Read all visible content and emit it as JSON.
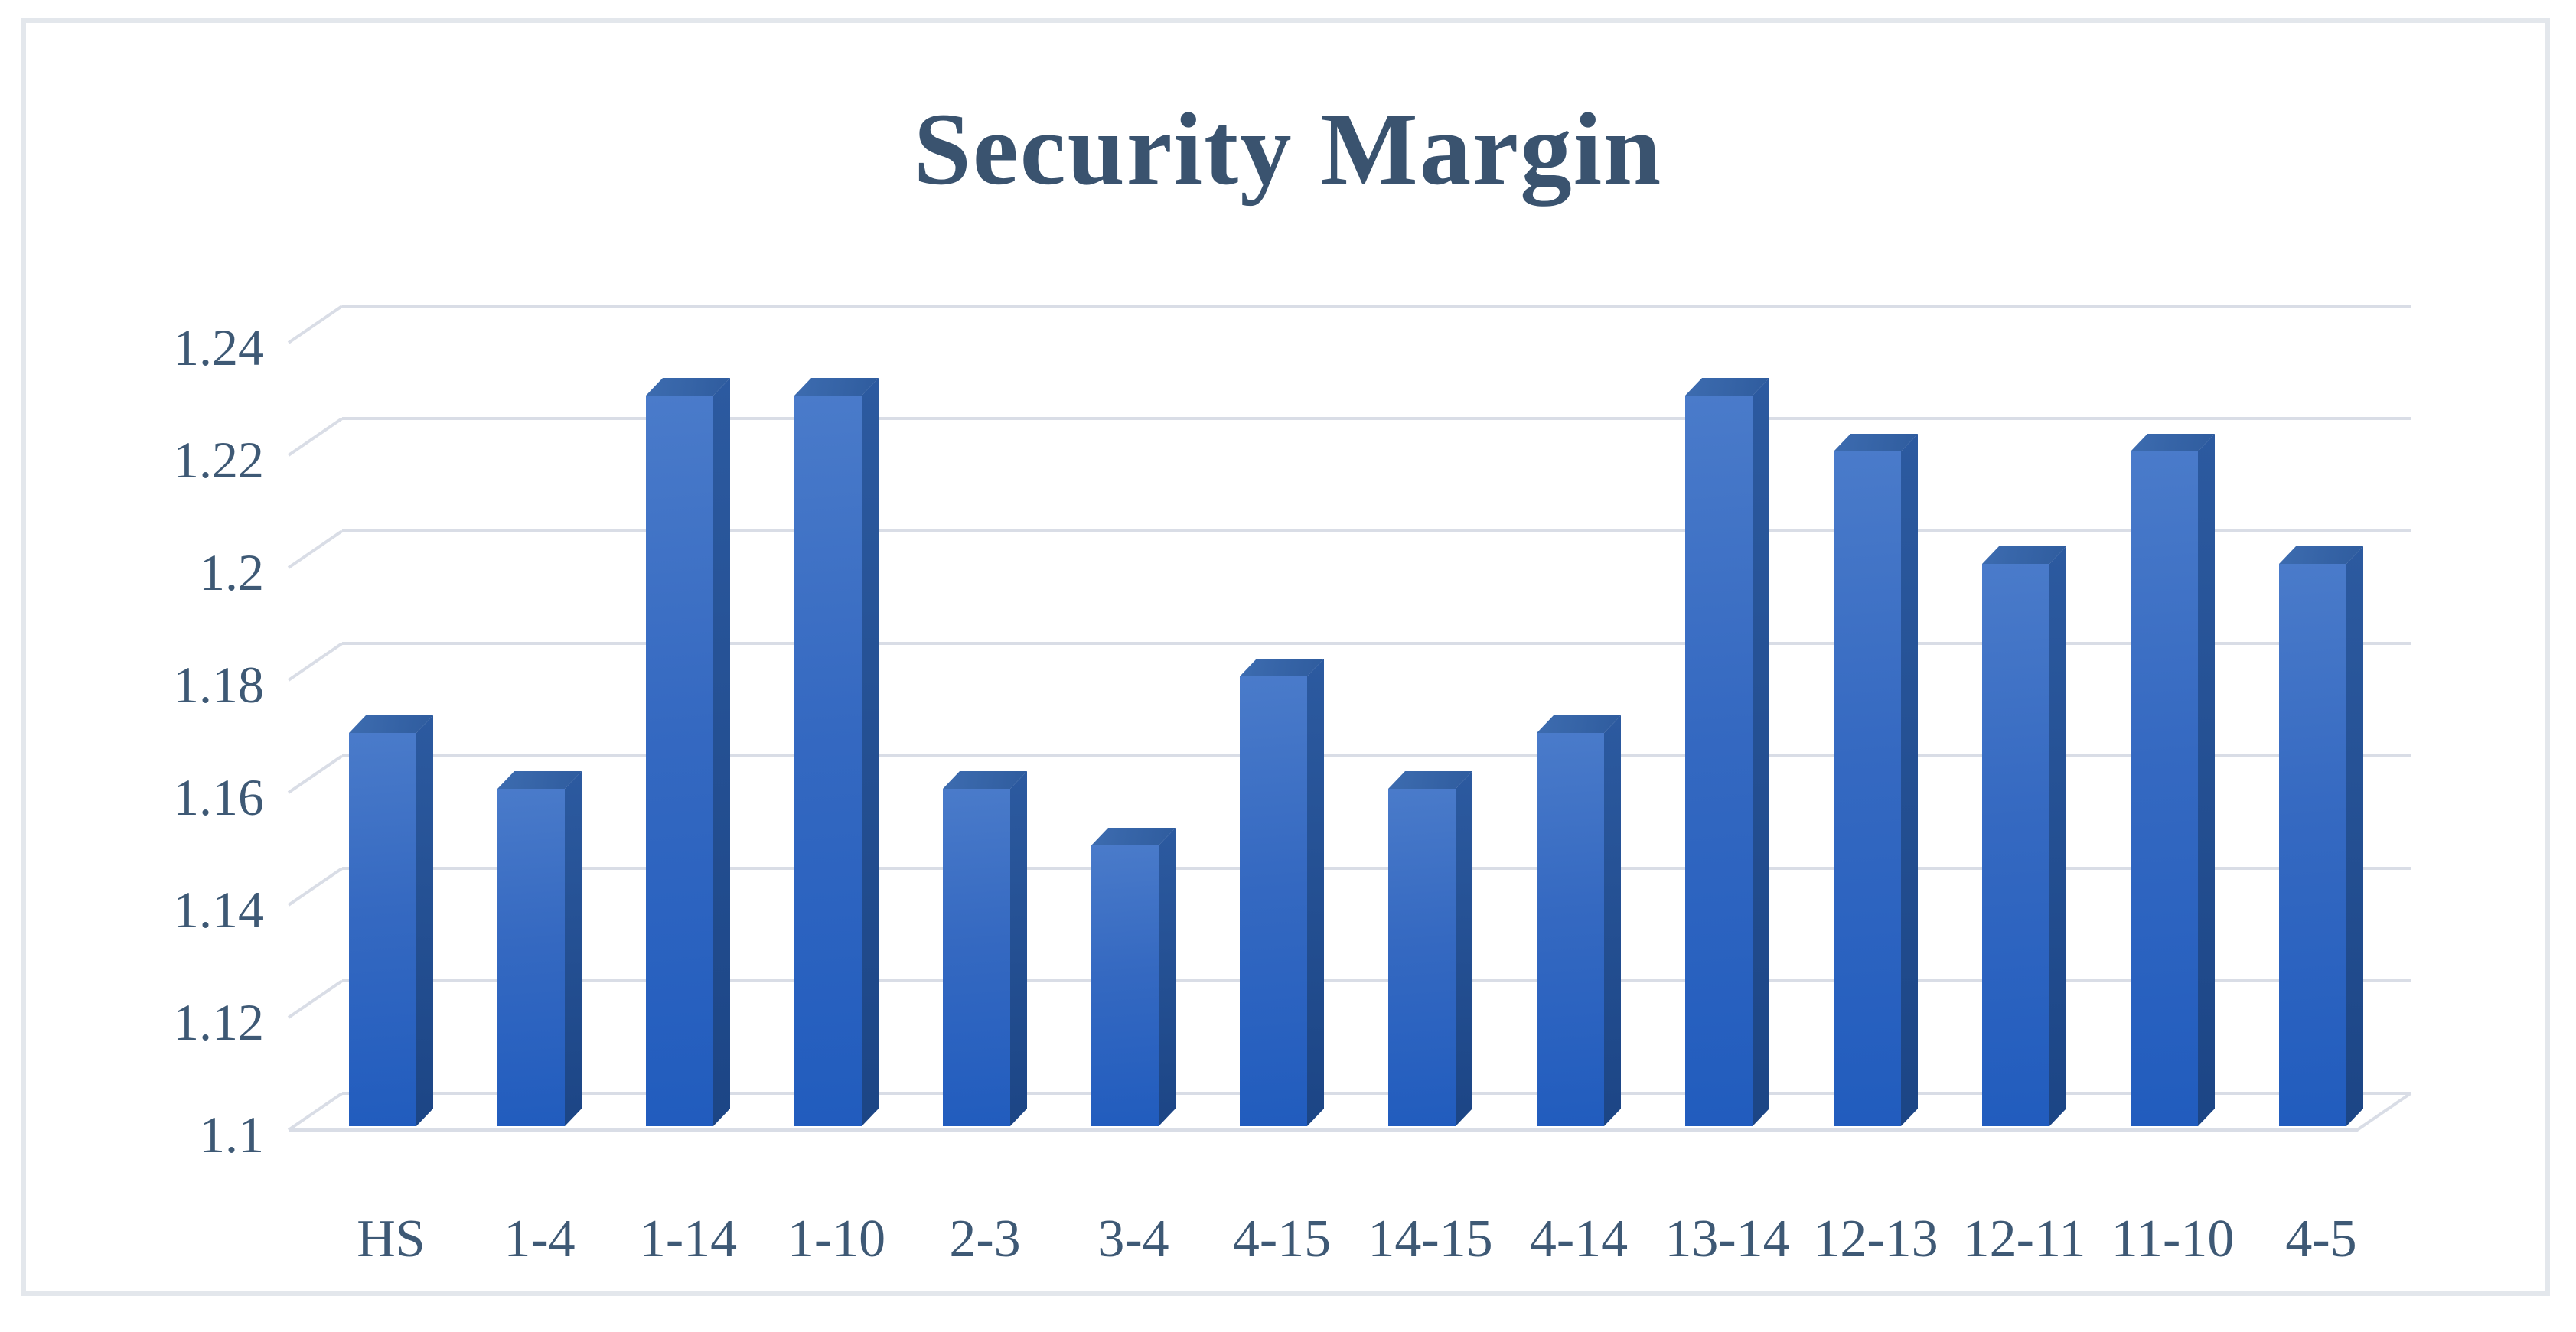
{
  "chart_data": {
    "type": "bar",
    "style": "3d-column",
    "title": "Security Margin",
    "categories": [
      "HS",
      "1-4",
      "1-14",
      "1-10",
      "2-3",
      "3-4",
      "4-15",
      "14-15",
      "4-14",
      "13-14",
      "12-13",
      "12-11",
      "11-10",
      "4-5"
    ],
    "values": [
      1.17,
      1.16,
      1.23,
      1.23,
      1.16,
      1.15,
      1.18,
      1.16,
      1.17,
      1.23,
      1.22,
      1.2,
      1.22,
      1.2
    ],
    "xlabel": "",
    "ylabel": "",
    "ylim": [
      1.1,
      1.24
    ],
    "y_tick_step": 0.02,
    "y_tick_labels": [
      "1.24",
      "1.22",
      "1.2",
      "1.18",
      "1.16",
      "1.14",
      "1.12",
      "1.1"
    ],
    "grid": true,
    "legend": false,
    "colors": {
      "bar_front_top": "#4a7bca",
      "bar_front_mid": "#3569c1",
      "bar_front_bottom": "#215cbe",
      "bar_side_top": "#2c5aa0",
      "bar_side_bottom": "#1c4585",
      "bar_top_face_light": "#3d6cb0",
      "bar_top_face_dark": "#2f5c9e",
      "gridline": "#d9dde6",
      "axis_text": "#3e5975",
      "title_text": "#3a536f",
      "frame_border": "#e3e7ec",
      "background": "#ffffff"
    }
  }
}
